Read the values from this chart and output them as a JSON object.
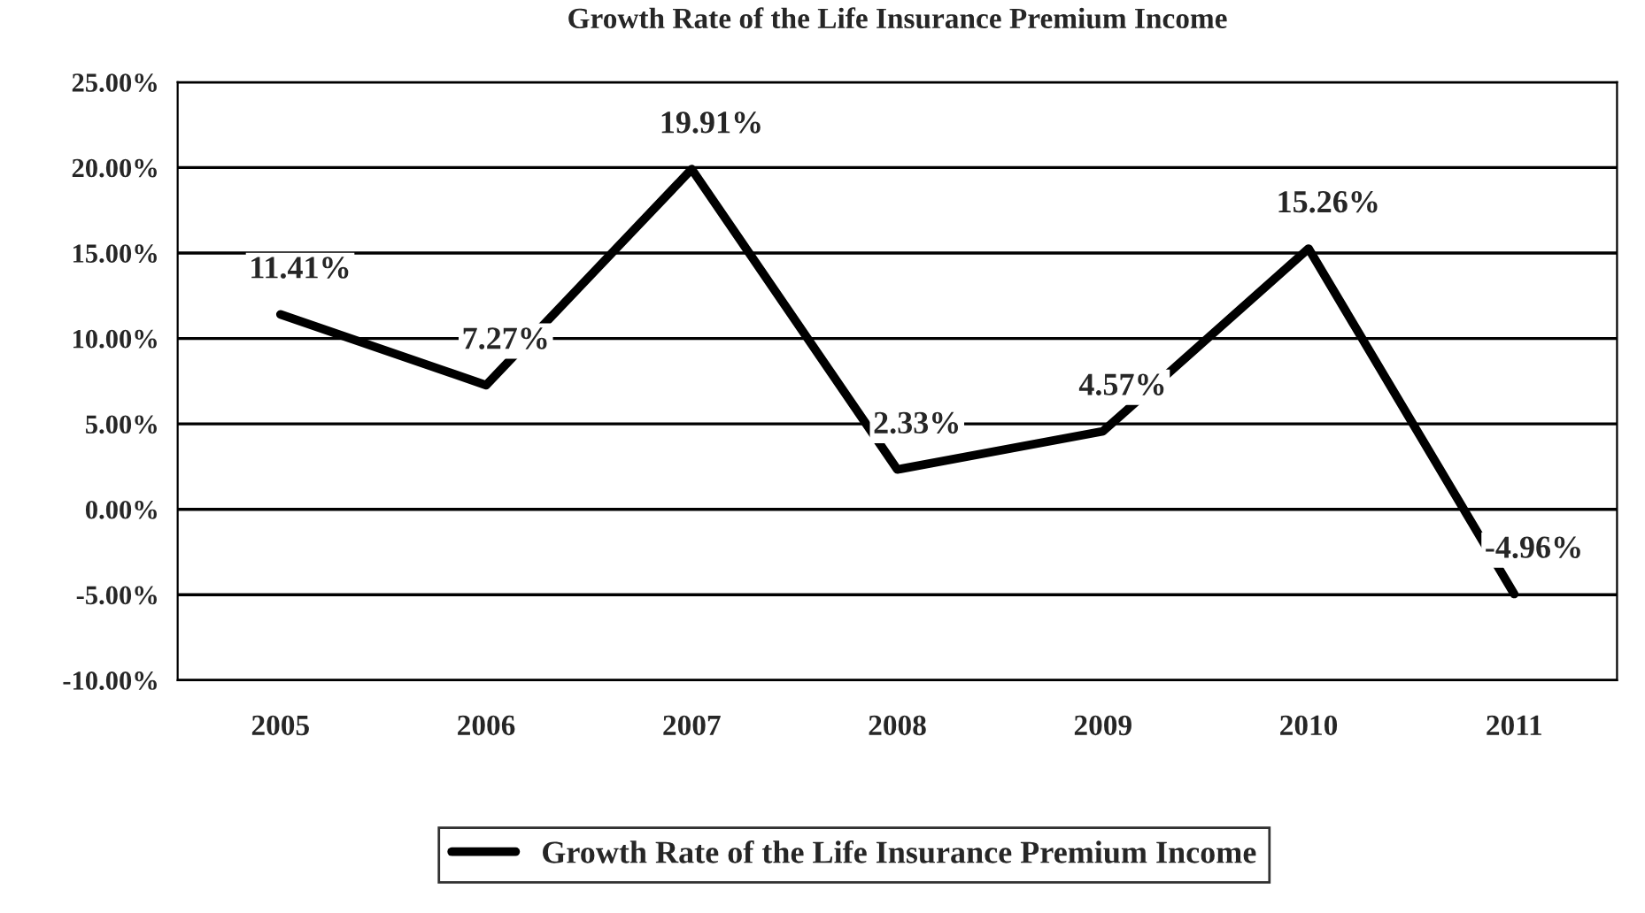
{
  "chart_data": {
    "type": "line",
    "title": "Growth Rate of the Life Insurance Premium Income",
    "categories": [
      "2005",
      "2006",
      "2007",
      "2008",
      "2009",
      "2010",
      "2011"
    ],
    "series": [
      {
        "name": "Growth Rate of the Life Insurance Premium Income",
        "color": "#000000",
        "values": [
          11.41,
          7.27,
          19.91,
          2.33,
          4.57,
          15.26,
          -4.96
        ],
        "value_labels": [
          "11.41%",
          "7.27%",
          "19.91%",
          "2.33%",
          "4.57%",
          "15.26%",
          "-4.96%"
        ]
      }
    ],
    "ylim": [
      -10,
      25
    ],
    "yticks": [
      {
        "value": -10,
        "label": "-10.00%"
      },
      {
        "value": -5,
        "label": "-5.00%"
      },
      {
        "value": 0,
        "label": "0.00%"
      },
      {
        "value": 5,
        "label": "5.00%"
      },
      {
        "value": 10,
        "label": "10.00%"
      },
      {
        "value": 15,
        "label": "15.00%"
      },
      {
        "value": 20,
        "label": "20.00%"
      },
      {
        "value": 25,
        "label": "25.00%"
      }
    ],
    "grid": "y",
    "legend": "bottom",
    "marker": "none",
    "line_style": "solid"
  }
}
